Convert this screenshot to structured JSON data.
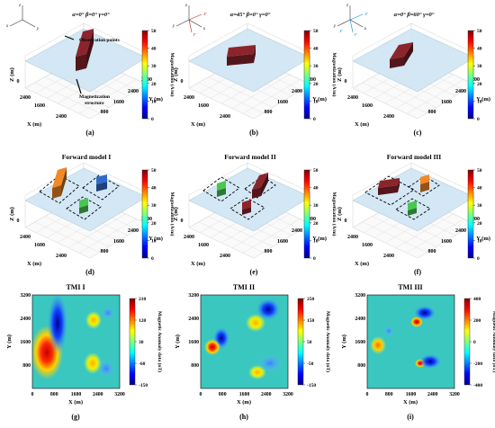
{
  "figure": {
    "row1": [
      {
        "angles": "α=0° β=0° γ=0°",
        "letter": "(a)",
        "annotations": [
          "Observation points",
          "Magnetization",
          "structure"
        ],
        "axis_letters": [
          "z",
          "x",
          "y"
        ]
      },
      {
        "angles": "α=45° β=0° γ=0°",
        "letter": "(b)",
        "axis_letters": [
          "z",
          "y",
          "x",
          "X'",
          "Y'"
        ]
      },
      {
        "angles": "α=0° β=60° γ=0°",
        "letter": "(c)",
        "axis_letters": [
          "z",
          "y",
          "x",
          "Z'",
          "Y'",
          "X'"
        ]
      }
    ],
    "row2": [
      {
        "title": "Forward model I",
        "letter": "(d)"
      },
      {
        "title": "Forward model II",
        "letter": "(e)"
      },
      {
        "title": "Forward model III",
        "letter": "(f)"
      }
    ],
    "row3": [
      {
        "title": "TMI I",
        "letter": "(g)"
      },
      {
        "title": "TMI II",
        "letter": "(h)"
      },
      {
        "title": "TMI III",
        "letter": "(i)"
      }
    ],
    "model_axes": {
      "x_label": "X (m)",
      "y_label": "Y (m)",
      "z_label": "Z (m)",
      "ticks": [
        "800",
        "1600",
        "2400",
        "3200"
      ]
    },
    "map_axes": {
      "x_label": "X (m)",
      "y_label": "Y (m)",
      "x_ticks": [
        "0",
        "800",
        "1600",
        "2400",
        "3200"
      ],
      "y_ticks": [
        "800",
        "1600",
        "2400",
        "3200"
      ]
    },
    "colorbars": {
      "magnetization": {
        "label": "Magnetization (A/m)",
        "ticks": [
          "0",
          "10",
          "20",
          "30",
          "40",
          "50"
        ]
      },
      "tmi": [
        {
          "label": "Magnetic Anomaly data (nT)",
          "ticks": [
            "-150",
            "-60",
            "30",
            "120",
            "210"
          ]
        },
        {
          "label": "Magnetic Anomaly data (nT)",
          "ticks": [
            "-150",
            "-50",
            "50",
            "150",
            "250"
          ]
        },
        {
          "label": "Magnetic Anomaly data (nT)",
          "ticks": [
            "-400",
            "-200",
            "0",
            "200",
            "400"
          ]
        }
      ]
    },
    "colors": {
      "plane": "#cfe5f3",
      "block_dark_red": "#7a1f26",
      "block_orange": "#d4761f",
      "block_blue": "#2a5db0",
      "block_green": "#3fae46",
      "map_background": "#3ac7c0"
    }
  }
}
